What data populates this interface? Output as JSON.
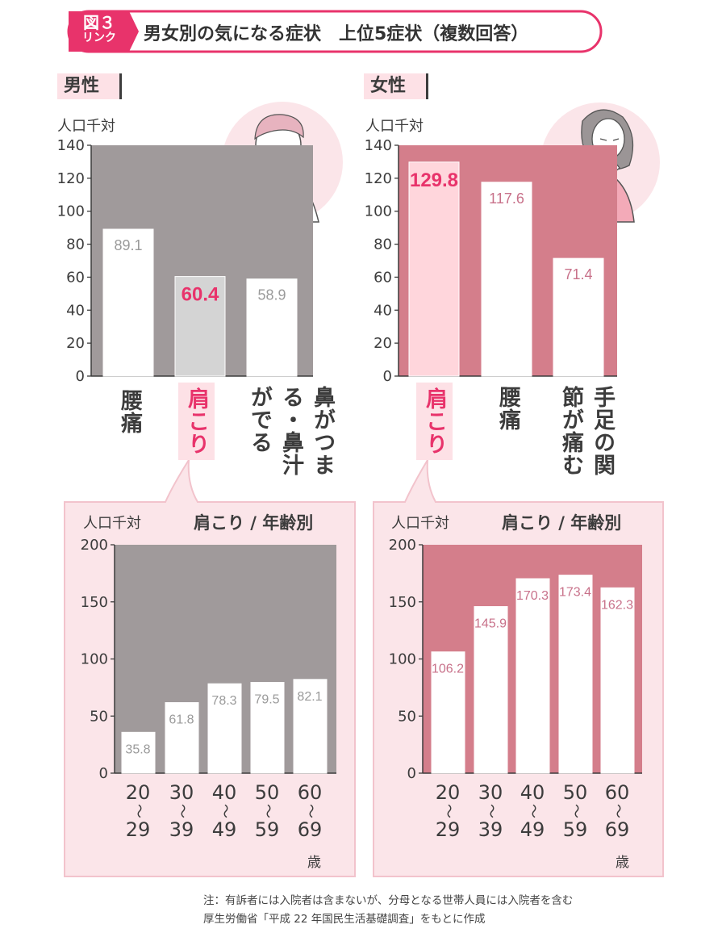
{
  "header": {
    "badge_top": "図３",
    "badge_bottom": "リンク",
    "title": "男女別の気になる症状　上位5症状（複数回答）"
  },
  "male": {
    "section_label": "男性",
    "unit": "人口千対",
    "age_title": "肩こり / 年齢別",
    "age_suffix": "歳"
  },
  "female": {
    "section_label": "女性",
    "unit": "人口千対",
    "age_title": "肩こり / 年齢別",
    "age_suffix": "歳"
  },
  "colors": {
    "male_bg": "#a09a9b",
    "female_bg": "#d47e8b",
    "accent": "#e8336b",
    "panel_pink": "#fbe5e9",
    "highlight_bar": "#ffd6dc",
    "male_highlight_bar": "#d4d4d4"
  },
  "notes": [
    "注：有訴者には入院者は含まないが、分母となる世帯人員には入院者を含む",
    "厚生労働省「平成 22 年国民生活基礎調査」をもとに作成"
  ],
  "chart_data": [
    {
      "type": "bar",
      "title": "男性",
      "ylabel": "人口千対",
      "ylim": [
        0,
        140
      ],
      "yticks": [
        "0",
        "20",
        "40",
        "60",
        "80",
        "100",
        "120",
        "140"
      ],
      "categories": [
        "腰痛",
        "肩こり",
        "鼻がつまる・鼻汁がでる"
      ],
      "values": [
        89.1,
        60.4,
        58.9
      ],
      "value_labels": [
        "89.1",
        "60.4",
        "58.9"
      ],
      "highlight": 1
    },
    {
      "type": "bar",
      "title": "女性",
      "ylabel": "人口千対",
      "ylim": [
        0,
        140
      ],
      "yticks": [
        "0",
        "20",
        "40",
        "60",
        "80",
        "100",
        "120",
        "140"
      ],
      "categories": [
        "肩こり",
        "腰痛",
        "手足の関節が痛む"
      ],
      "values": [
        129.8,
        117.6,
        71.4
      ],
      "value_labels": [
        "129.8",
        "117.6",
        "71.4"
      ],
      "highlight": 0
    },
    {
      "type": "bar",
      "title": "肩こり / 年齢別",
      "ylabel": "人口千対",
      "ylim": [
        0,
        200
      ],
      "yticks": [
        "0",
        "50",
        "100",
        "150",
        "200"
      ],
      "categories": [
        "20〜29",
        "30〜39",
        "40〜49",
        "50〜59",
        "60〜69"
      ],
      "values": [
        35.8,
        61.8,
        78.3,
        79.5,
        82.1
      ],
      "value_labels": [
        "35.8",
        "61.8",
        "78.3",
        "79.5",
        "82.1"
      ]
    },
    {
      "type": "bar",
      "title": "肩こり / 年齢別",
      "ylabel": "人口千対",
      "ylim": [
        0,
        200
      ],
      "yticks": [
        "0",
        "50",
        "100",
        "150",
        "200"
      ],
      "categories": [
        "20〜29",
        "30〜39",
        "40〜49",
        "50〜59",
        "60〜69"
      ],
      "values": [
        106.2,
        145.9,
        170.3,
        173.4,
        162.3
      ],
      "value_labels": [
        "106.2",
        "145.9",
        "170.3",
        "173.4",
        "162.3"
      ]
    }
  ],
  "age_labels": [
    {
      "top": "20",
      "bottom": "29"
    },
    {
      "top": "30",
      "bottom": "39"
    },
    {
      "top": "40",
      "bottom": "49"
    },
    {
      "top": "50",
      "bottom": "59"
    },
    {
      "top": "60",
      "bottom": "69"
    }
  ]
}
